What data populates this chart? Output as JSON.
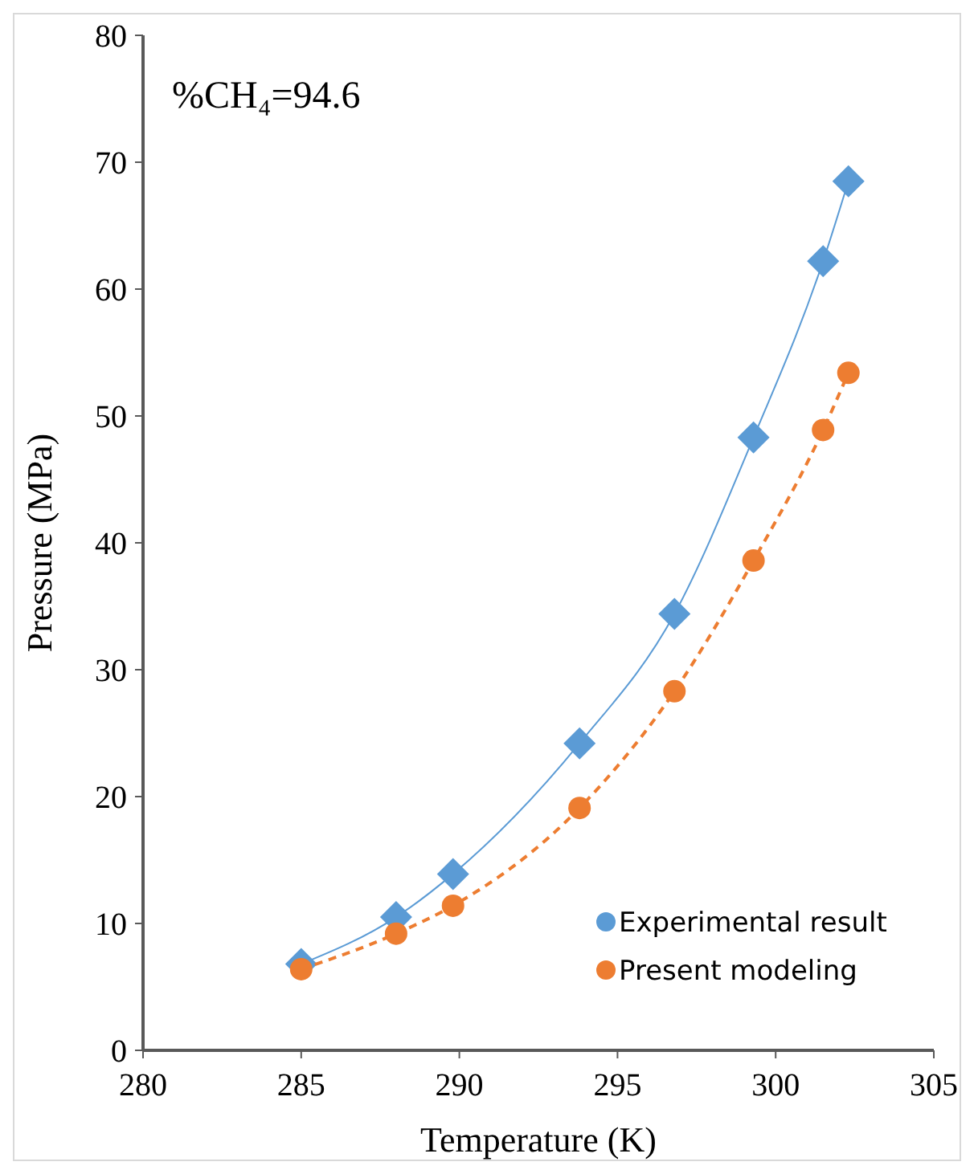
{
  "chart_data": {
    "type": "line",
    "xlabel": "Temperature (K)",
    "ylabel": "Pressure (MPa)",
    "annotations": [
      "%CH₄=94.6"
    ],
    "x": [
      285,
      288,
      289.8,
      293.8,
      296.8,
      299.3,
      301.5,
      302.3
    ],
    "series": [
      {
        "name": "Experimental result",
        "color": "#5b9bd5",
        "values": [
          6.8,
          10.5,
          13.9,
          24.2,
          34.4,
          48.3,
          62.2,
          68.5
        ],
        "marker": "diamond",
        "line_style": "solid"
      },
      {
        "name": "Present modeling",
        "color": "#ed7d31",
        "values": [
          6.4,
          9.2,
          11.4,
          19.1,
          28.3,
          38.6,
          48.9,
          53.4
        ],
        "marker": "circle",
        "line_style": "dashed"
      }
    ],
    "xlim": [
      280,
      305
    ],
    "xticks": [
      280,
      285,
      290,
      295,
      300,
      305
    ],
    "ylim": [
      0,
      80
    ],
    "yticks": [
      0,
      10,
      20,
      30,
      40,
      50,
      60,
      70,
      80
    ],
    "grid": false,
    "legend": "bottom right"
  }
}
